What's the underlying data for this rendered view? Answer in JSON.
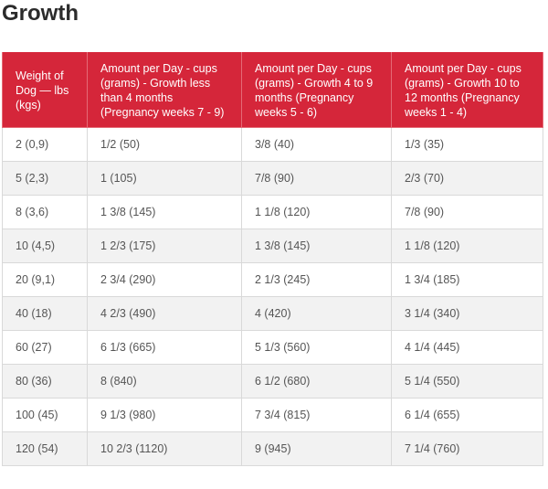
{
  "page": {
    "title": "Growth"
  },
  "table": {
    "headers": [
      "Weight of Dog — lbs (kgs)",
      "Amount per Day - cups (grams) - Growth less than 4 months (Pregnancy weeks 7 - 9)",
      "Amount per Day - cups (grams) - Growth 4 to 9 months (Pregnancy weeks 5 - 6)",
      "Amount per Day - cups (grams) - Growth 10 to 12 months (Pregnancy weeks 1 - 4)"
    ],
    "rows": [
      [
        "2 (0,9)",
        "1/2 (50)",
        "3/8 (40)",
        "1/3 (35)"
      ],
      [
        "5 (2,3)",
        "1 (105)",
        "7/8 (90)",
        "2/3 (70)"
      ],
      [
        "8 (3,6)",
        "1 3/8 (145)",
        "1 1/8 (120)",
        "7/8 (90)"
      ],
      [
        "10 (4,5)",
        "1 2/3 (175)",
        "1 3/8 (145)",
        "1 1/8 (120)"
      ],
      [
        "20 (9,1)",
        "2 3/4 (290)",
        "2 1/3 (245)",
        "1 3/4 (185)"
      ],
      [
        "40 (18)",
        "4 2/3 (490)",
        "4 (420)",
        "3 1/4 (340)"
      ],
      [
        "60 (27)",
        "6 1/3 (665)",
        "5 1/3 (560)",
        "4 1/4 (445)"
      ],
      [
        "80 (36)",
        "8 (840)",
        "6 1/2 (680)",
        "5 1/4 (550)"
      ],
      [
        "100 (45)",
        "9 1/3 (980)",
        "7 3/4 (815)",
        "6 1/4 (655)"
      ],
      [
        "120 (54)",
        "10 2/3 (1120)",
        "9 (945)",
        "7 1/4 (760)"
      ]
    ]
  },
  "colors": {
    "header_background": "#d5263a",
    "header_text": "#ffffff",
    "striped_row": "#f2f2f2"
  }
}
